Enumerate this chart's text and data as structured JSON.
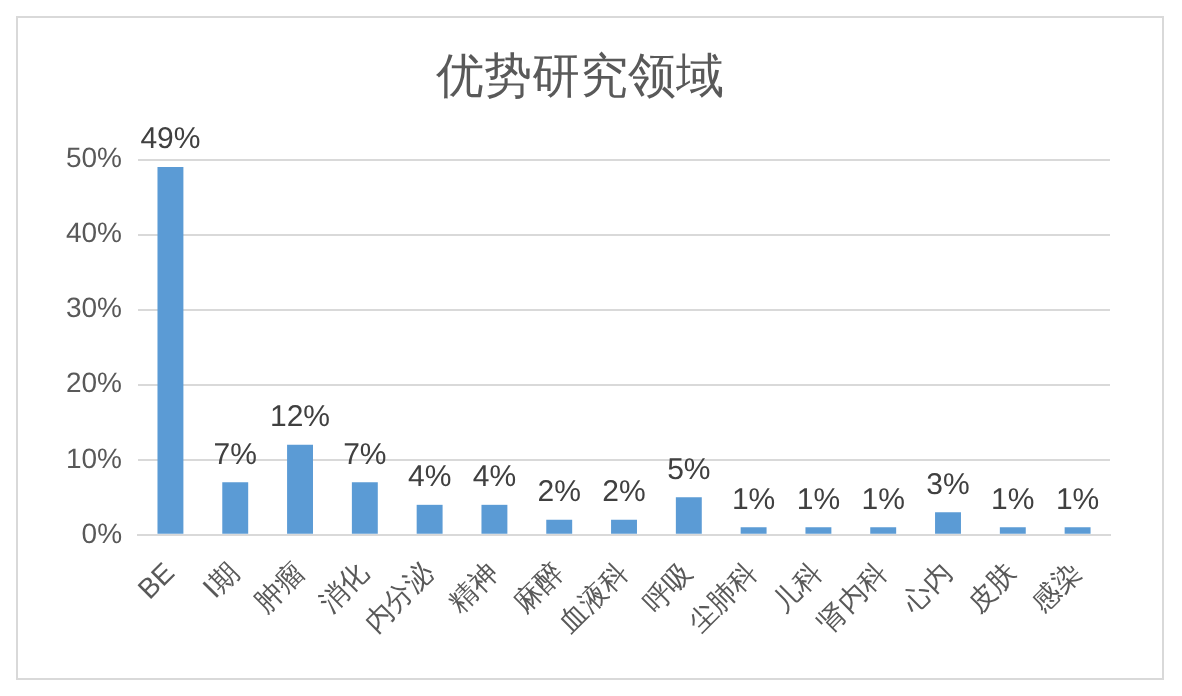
{
  "chart_data": {
    "type": "bar",
    "title": "优势研究领域",
    "categories": [
      "BE",
      "Ⅰ期",
      "肿瘤",
      "消化",
      "内分泌",
      "精神",
      "麻醉",
      "血液科",
      "呼吸",
      "尘肺科",
      "儿科",
      "肾内科",
      "心内",
      "皮肤",
      "感染"
    ],
    "values": [
      49,
      7,
      12,
      7,
      4,
      4,
      2,
      2,
      5,
      1,
      1,
      1,
      3,
      1,
      1
    ],
    "value_labels": [
      "49%",
      "7%",
      "12%",
      "7%",
      "4%",
      "4%",
      "2%",
      "2%",
      "5%",
      "1%",
      "1%",
      "1%",
      "3%",
      "1%",
      "1%"
    ],
    "color": "#5b9bd5",
    "ylim": [
      0,
      50
    ],
    "yticks": [
      {
        "value": 0,
        "label": "0%"
      },
      {
        "value": 10,
        "label": "10%"
      },
      {
        "value": 20,
        "label": "20%"
      },
      {
        "value": 30,
        "label": "30%"
      },
      {
        "value": 40,
        "label": "40%"
      },
      {
        "value": 50,
        "label": "50%"
      }
    ],
    "grid": "y",
    "legend": false
  }
}
